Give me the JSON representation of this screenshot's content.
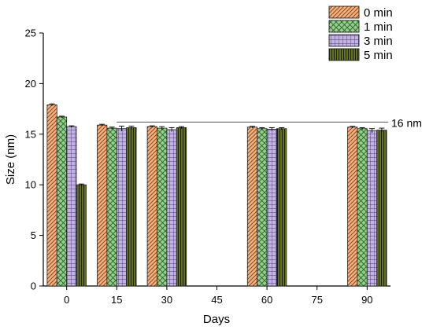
{
  "chart_data": {
    "type": "bar",
    "xlabel": "Days",
    "ylabel": "Size (nm)",
    "x_ticks": [
      "0",
      "15",
      "30",
      "45",
      "60",
      "75",
      "90"
    ],
    "y_ticks": [
      "0",
      "5",
      "10",
      "15",
      "20",
      "25"
    ],
    "ylim": [
      0,
      25
    ],
    "categories": [
      "0",
      "15",
      "30",
      "60",
      "90"
    ],
    "legend_position": "top-right",
    "series": [
      {
        "name": "0 min",
        "color": "#f4b183",
        "pattern": "diagonal-hatch",
        "values": [
          17.9,
          15.9,
          15.75,
          15.7,
          15.7
        ],
        "errors": [
          0.1,
          0.08,
          0.08,
          0.08,
          0.08
        ]
      },
      {
        "name": "1 min",
        "color": "#92d08c",
        "pattern": "crosshatch",
        "values": [
          16.7,
          15.6,
          15.6,
          15.55,
          15.55
        ],
        "errors": [
          0.08,
          0.1,
          0.15,
          0.1,
          0.1
        ]
      },
      {
        "name": "3 min",
        "color": "#c3b3e0",
        "pattern": "grid",
        "values": [
          15.75,
          15.55,
          15.45,
          15.5,
          15.35
        ],
        "errors": [
          0.08,
          0.25,
          0.2,
          0.15,
          0.2
        ]
      },
      {
        "name": "5 min",
        "color": "#6b7a2a",
        "pattern": "vertical-lines",
        "values": [
          10.0,
          15.65,
          15.65,
          15.55,
          15.4
        ],
        "errors": [
          0.08,
          0.15,
          0.1,
          0.1,
          0.2
        ]
      }
    ],
    "annotation": {
      "text": "16 nm",
      "y": 16.2,
      "x_from": 15,
      "x_to": 90
    }
  }
}
